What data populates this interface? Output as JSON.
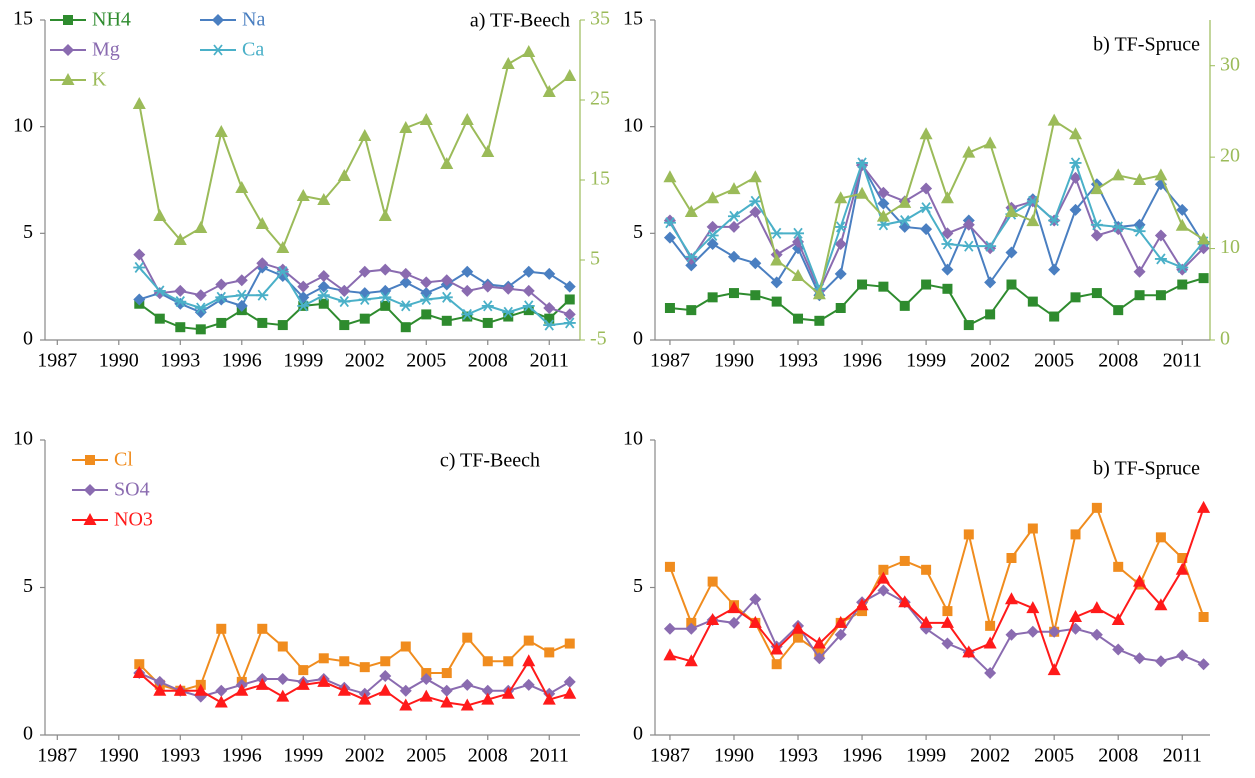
{
  "chart_data": [
    {
      "type": "line",
      "title": "a) TF-Beech",
      "legend": "upper left",
      "x": [
        1991,
        1992,
        1993,
        1994,
        1995,
        1996,
        1997,
        1998,
        1999,
        2000,
        2001,
        2002,
        2003,
        2004,
        2005,
        2006,
        2007,
        2008,
        2009,
        2010,
        2011,
        2012
      ],
      "xlim": [
        1986.4,
        2012.5
      ],
      "xticks": [
        1987,
        1990,
        1993,
        1996,
        1999,
        2002,
        2005,
        2008,
        2011
      ],
      "ylim": [
        0,
        15
      ],
      "yticks": [
        0,
        5,
        10,
        15
      ],
      "y2lim": [
        -5,
        35
      ],
      "y2ticks": [
        -5,
        5,
        15,
        25,
        35
      ],
      "series": [
        {
          "name": "NH4",
          "color": "#2e8b2e",
          "marker": "square",
          "values": [
            1.7,
            1.0,
            0.6,
            0.5,
            0.8,
            1.4,
            0.8,
            0.7,
            1.6,
            1.7,
            0.7,
            1.0,
            1.6,
            0.6,
            1.2,
            0.9,
            1.1,
            0.8,
            1.1,
            1.4,
            1.0,
            1.9
          ]
        },
        {
          "name": "Na",
          "color": "#4a7fc1",
          "marker": "diamond",
          "values": [
            1.9,
            2.2,
            1.7,
            1.3,
            1.9,
            1.6,
            3.4,
            3.0,
            2.0,
            2.5,
            2.3,
            2.2,
            2.3,
            2.7,
            2.2,
            2.6,
            3.2,
            2.6,
            2.5,
            3.2,
            3.1,
            2.5
          ]
        },
        {
          "name": "Mg",
          "color": "#8a6bb0",
          "marker": "diamond",
          "values": [
            4.0,
            2.2,
            2.3,
            2.1,
            2.6,
            2.8,
            3.6,
            3.3,
            2.5,
            3.0,
            2.3,
            3.2,
            3.3,
            3.1,
            2.7,
            2.8,
            2.3,
            2.5,
            2.4,
            2.3,
            1.5,
            1.2
          ]
        },
        {
          "name": "Ca",
          "color": "#4ab0c8",
          "marker": "star",
          "values": [
            3.4,
            2.3,
            1.8,
            1.5,
            2.0,
            2.1,
            2.1,
            3.2,
            1.6,
            2.1,
            1.8,
            1.9,
            2.0,
            1.6,
            1.9,
            2.0,
            1.2,
            1.6,
            1.3,
            1.6,
            0.7,
            0.8
          ]
        },
        {
          "name": "K",
          "color": "#9bbb59",
          "marker": "triangle",
          "axis": "y2",
          "values": [
            24.5,
            10.5,
            7.5,
            9,
            21,
            14,
            9.5,
            6.5,
            13,
            12.5,
            15.5,
            20.5,
            10.5,
            21.5,
            22.5,
            17,
            22.5,
            18.5,
            29.5,
            31,
            26,
            28
          ]
        }
      ]
    },
    {
      "type": "line",
      "title": "b) TF-Spruce",
      "x": [
        1987,
        1988,
        1989,
        1990,
        1991,
        1992,
        1993,
        1994,
        1995,
        1996,
        1997,
        1998,
        1999,
        2000,
        2001,
        2002,
        2003,
        2004,
        2005,
        2006,
        2007,
        2008,
        2009,
        2010,
        2011,
        2012
      ],
      "xlim": [
        1986.3,
        2012.3
      ],
      "xticks": [
        1987,
        1990,
        1993,
        1996,
        1999,
        2002,
        2005,
        2008,
        2011
      ],
      "ylim": [
        0,
        15
      ],
      "yticks": [
        0,
        5,
        10,
        15
      ],
      "y2lim": [
        0,
        35
      ],
      "y2ticks": [
        0,
        10,
        20,
        30
      ],
      "series": [
        {
          "color": "#2e8b2e",
          "marker": "square",
          "values": [
            1.5,
            1.4,
            2.0,
            2.2,
            2.1,
            1.8,
            1.0,
            0.9,
            1.5,
            2.6,
            2.5,
            1.6,
            2.6,
            2.4,
            0.7,
            1.2,
            2.6,
            1.8,
            1.1,
            2.0,
            2.2,
            1.4,
            2.1,
            2.1,
            2.6,
            2.9
          ]
        },
        {
          "color": "#4a7fc1",
          "marker": "diamond",
          "values": [
            4.8,
            3.5,
            4.5,
            3.9,
            3.6,
            2.7,
            4.3,
            2.1,
            3.1,
            8.2,
            6.4,
            5.3,
            5.2,
            3.3,
            5.6,
            2.7,
            4.1,
            6.6,
            3.3,
            6.1,
            7.3,
            5.3,
            5.4,
            7.3,
            6.1,
            4.5
          ]
        },
        {
          "color": "#8a6bb0",
          "marker": "diamond",
          "values": [
            5.6,
            3.8,
            5.3,
            5.3,
            6.0,
            4.0,
            4.6,
            2.3,
            4.5,
            8.2,
            6.9,
            6.5,
            7.1,
            5.0,
            5.4,
            4.3,
            6.2,
            6.5,
            5.6,
            7.6,
            4.9,
            5.2,
            3.2,
            4.9,
            3.3,
            4.3
          ]
        },
        {
          "color": "#4ab0c8",
          "marker": "star",
          "values": [
            5.5,
            3.9,
            4.9,
            5.8,
            6.5,
            5.0,
            5.0,
            2.4,
            5.3,
            8.3,
            5.4,
            5.6,
            6.2,
            4.5,
            4.4,
            4.4,
            5.9,
            6.5,
            5.6,
            8.3,
            5.4,
            5.3,
            5.1,
            3.8,
            3.4,
            4.6
          ]
        },
        {
          "color": "#9bbb59",
          "marker": "triangle",
          "axis": "y2",
          "values": [
            17.8,
            14,
            15.5,
            16.5,
            17.8,
            8.7,
            7,
            5,
            15.5,
            16,
            13.5,
            15,
            22.5,
            15.5,
            20.5,
            21.5,
            14,
            13,
            24,
            22.5,
            16.5,
            18,
            17.5,
            18,
            12.5,
            11
          ]
        }
      ]
    },
    {
      "type": "line",
      "title": "c) TF-Beech",
      "legend": "upper left",
      "x": [
        1991,
        1992,
        1993,
        1994,
        1995,
        1996,
        1997,
        1998,
        1999,
        2000,
        2001,
        2002,
        2003,
        2004,
        2005,
        2006,
        2007,
        2008,
        2009,
        2010,
        2011,
        2012
      ],
      "xlim": [
        1986.4,
        2012.5
      ],
      "xticks": [
        1987,
        1990,
        1993,
        1996,
        1999,
        2002,
        2005,
        2008,
        2011
      ],
      "ylim": [
        0,
        10
      ],
      "yticks": [
        0,
        5,
        10
      ],
      "series": [
        {
          "name": "Cl",
          "color": "#f08c1e",
          "marker": "square",
          "values": [
            2.4,
            1.7,
            1.5,
            1.7,
            3.6,
            1.8,
            3.6,
            3.0,
            2.2,
            2.6,
            2.5,
            2.3,
            2.5,
            3.0,
            2.1,
            2.1,
            3.3,
            2.5,
            2.5,
            3.2,
            2.8,
            3.1
          ]
        },
        {
          "name": "SO4",
          "color": "#8a6bb0",
          "marker": "diamond",
          "values": [
            2.1,
            1.8,
            1.5,
            1.3,
            1.5,
            1.7,
            1.9,
            1.9,
            1.8,
            1.9,
            1.6,
            1.4,
            2.0,
            1.5,
            1.9,
            1.5,
            1.7,
            1.5,
            1.5,
            1.7,
            1.4,
            1.8
          ]
        },
        {
          "name": "NO3",
          "color": "#ff1a1a",
          "marker": "triangle",
          "values": [
            2.1,
            1.5,
            1.5,
            1.5,
            1.1,
            1.5,
            1.7,
            1.3,
            1.7,
            1.8,
            1.5,
            1.2,
            1.5,
            1.0,
            1.3,
            1.1,
            1.0,
            1.2,
            1.4,
            2.5,
            1.2,
            1.4
          ]
        }
      ]
    },
    {
      "type": "line",
      "title": "b) TF-Spruce",
      "x": [
        1987,
        1988,
        1989,
        1990,
        1991,
        1992,
        1993,
        1994,
        1995,
        1996,
        1997,
        1998,
        1999,
        2000,
        2001,
        2002,
        2003,
        2004,
        2005,
        2006,
        2007,
        2008,
        2009,
        2010,
        2011,
        2012
      ],
      "xlim": [
        1986.3,
        2012.3
      ],
      "xticks": [
        1987,
        1990,
        1993,
        1996,
        1999,
        2002,
        2005,
        2008,
        2011
      ],
      "ylim": [
        0,
        10
      ],
      "yticks": [
        0,
        5,
        10
      ],
      "series": [
        {
          "color": "#f08c1e",
          "marker": "square",
          "values": [
            5.7,
            3.8,
            5.2,
            4.4,
            3.8,
            2.4,
            3.3,
            2.8,
            3.8,
            4.2,
            5.6,
            5.9,
            5.6,
            4.2,
            6.8,
            3.7,
            6.0,
            7.0,
            3.5,
            6.8,
            7.7,
            5.7,
            5.1,
            6.7,
            6.0,
            4.0
          ]
        },
        {
          "color": "#8a6bb0",
          "marker": "diamond",
          "values": [
            3.6,
            3.6,
            3.9,
            3.8,
            4.6,
            3.0,
            3.7,
            2.6,
            3.4,
            4.5,
            4.9,
            4.5,
            3.6,
            3.1,
            2.8,
            2.1,
            3.4,
            3.5,
            3.5,
            3.6,
            3.4,
            2.9,
            2.6,
            2.5,
            2.7,
            2.4
          ]
        },
        {
          "color": "#ff1a1a",
          "marker": "triangle",
          "values": [
            2.7,
            2.5,
            3.9,
            4.3,
            3.8,
            2.9,
            3.6,
            3.1,
            3.8,
            4.4,
            5.3,
            4.5,
            3.8,
            3.8,
            2.8,
            3.1,
            4.6,
            4.3,
            2.2,
            4.0,
            4.3,
            3.9,
            5.2,
            4.4,
            5.6,
            7.7
          ]
        }
      ]
    }
  ]
}
